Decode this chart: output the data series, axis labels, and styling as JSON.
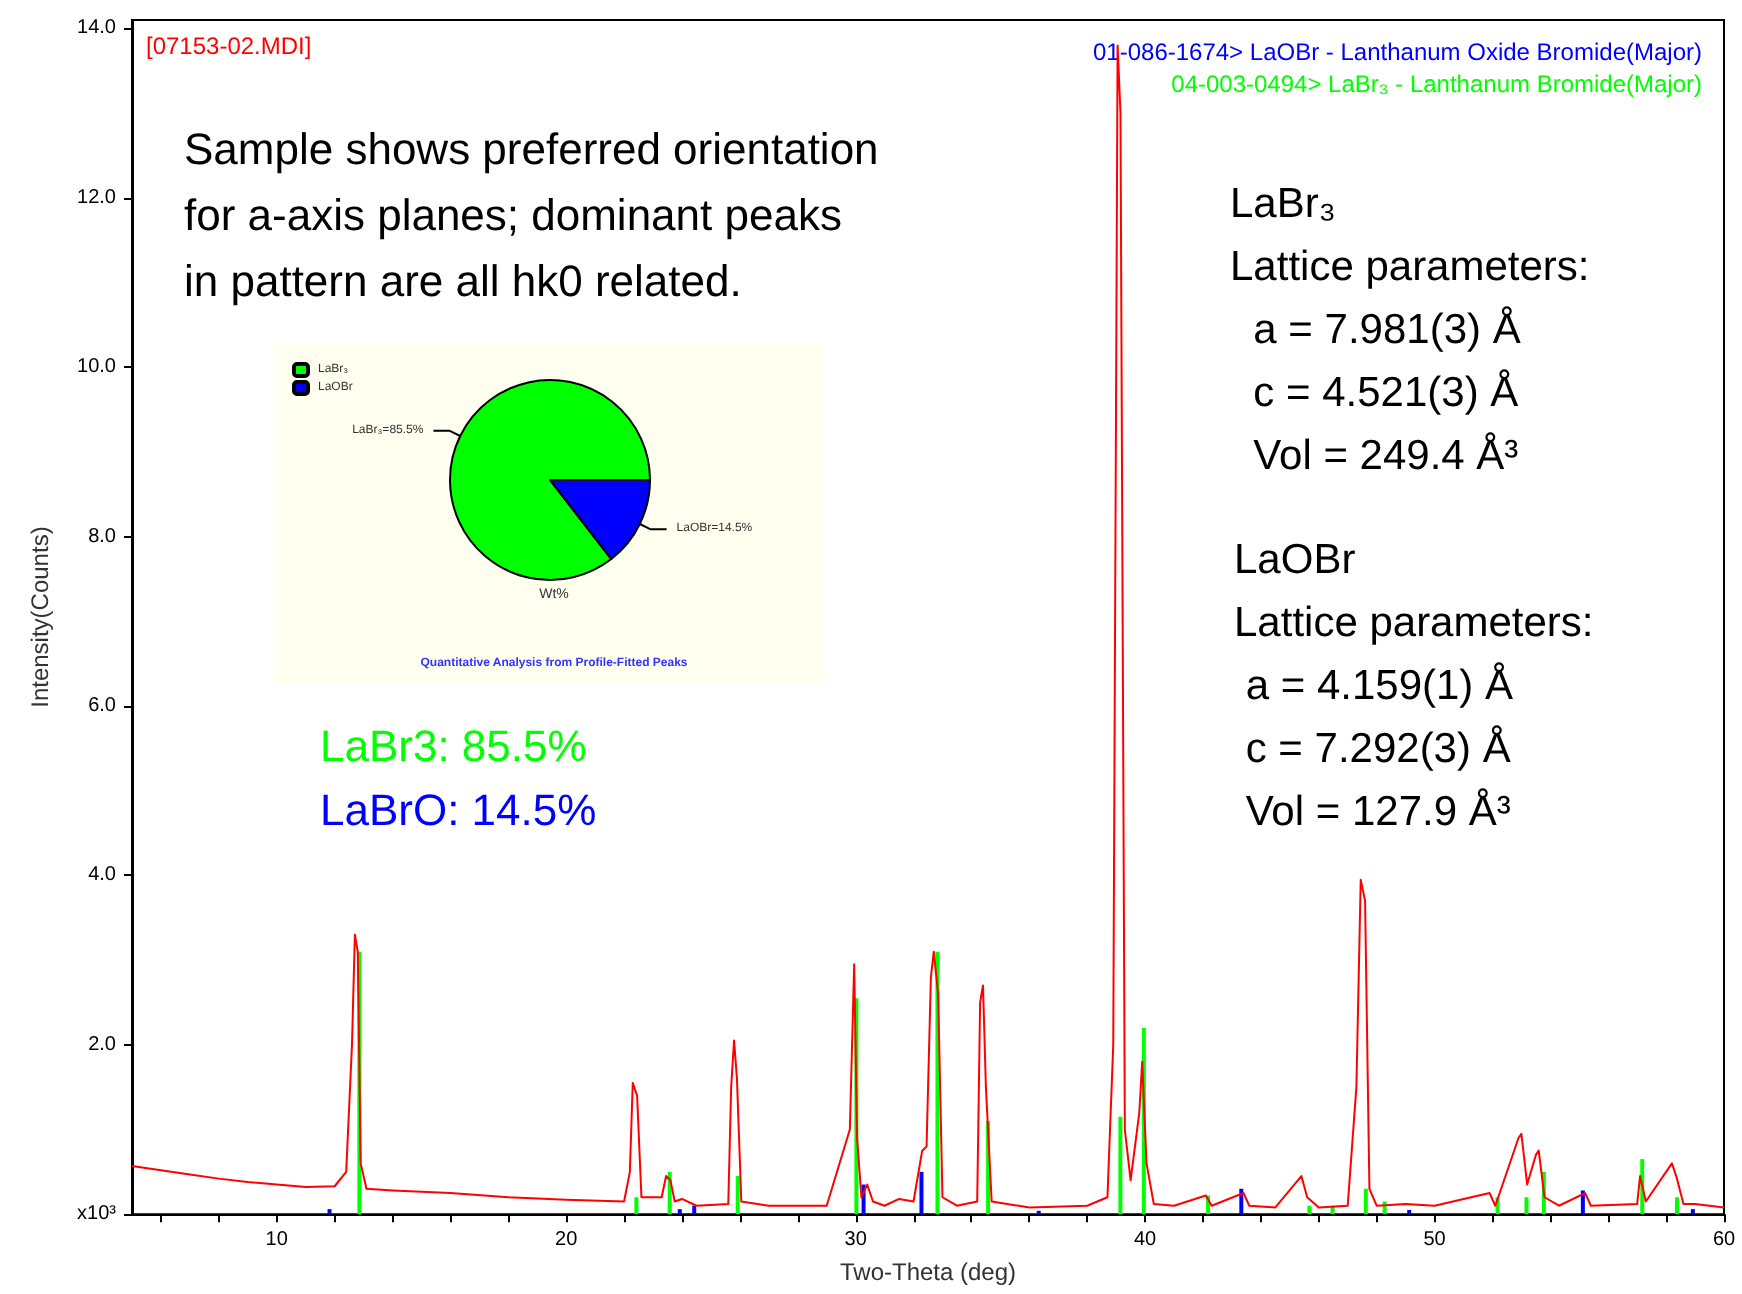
{
  "chart_data": [
    {
      "type": "line",
      "title": "[07153-02.MDI]",
      "xlabel": "Two-Theta (deg)",
      "ylabel": "Intensity(Counts)",
      "annotations": [
        "Sample shows preferred orientation\nfor a-axis planes; dominant peaks\nin pattern are all hk0 related.",
        "LaBr₃\nLattice parameters:\n  a = 7.981(3) Å\n  c = 4.521(3) Å\n  Vol = 249.4 Å³",
        "LaOBr\nLattice parameters:\n a = 4.159(1) Å\n c = 7.292(3) Å\n Vol = 127.9 Å³"
      ],
      "x": [
        5,
        6,
        7,
        8,
        9,
        10,
        11,
        12,
        12.4,
        12.6,
        12.7,
        12.8,
        12.9,
        13.1,
        14,
        16,
        18,
        20,
        22,
        22.2,
        22.3,
        22.45,
        22.6,
        23.3,
        23.45,
        23.6,
        23.75,
        24,
        24.5,
        25.6,
        25.7,
        25.8,
        25.9,
        26.05,
        27,
        29,
        29.8,
        29.95,
        30.05,
        30.2,
        30.4,
        30.6,
        31,
        31.5,
        32,
        32.3,
        32.45,
        32.6,
        32.7,
        32.85,
        33,
        33.5,
        34.2,
        34.3,
        34.4,
        34.5,
        34.7,
        36,
        38,
        38.7,
        38.9,
        39.05,
        39.15,
        39.3,
        39.5,
        39.8,
        39.9,
        40.05,
        40.3,
        41,
        42.1,
        42.3,
        43.4,
        43.6,
        44.5,
        45.4,
        45.6,
        46,
        47,
        47.3,
        47.45,
        47.6,
        47.75,
        48,
        49,
        50,
        51.9,
        52.1,
        52.9,
        53,
        53.2,
        53.5,
        53.6,
        53.8,
        54.3,
        55.2,
        55.4,
        57,
        57.1,
        57.3,
        58.2,
        58.35,
        58.6,
        59,
        60
      ],
      "series": [
        {
          "type": "line",
          "color": "#ff0000",
          "values": [
            0.57,
            0.52,
            0.47,
            0.42,
            0.38,
            0.35,
            0.32,
            0.33,
            0.5,
            2.0,
            3.3,
            3.1,
            0.6,
            0.3,
            0.28,
            0.25,
            0.2,
            0.17,
            0.15,
            0.5,
            1.55,
            1.4,
            0.2,
            0.2,
            0.45,
            0.4,
            0.15,
            0.18,
            0.1,
            0.12,
            1.5,
            2.05,
            1.6,
            0.15,
            0.1,
            0.1,
            1.0,
            2.95,
            0.9,
            0.2,
            0.35,
            0.15,
            0.1,
            0.18,
            0.15,
            0.75,
            0.8,
            2.8,
            3.1,
            2.6,
            0.2,
            0.1,
            0.15,
            2.5,
            2.7,
            1.5,
            0.15,
            0.08,
            0.1,
            0.2,
            2.0,
            13.8,
            13.0,
            1.0,
            0.4,
            1.2,
            1.8,
            0.6,
            0.12,
            0.1,
            0.22,
            0.1,
            0.25,
            0.1,
            0.08,
            0.45,
            0.2,
            0.08,
            0.1,
            1.5,
            3.95,
            3.7,
            0.3,
            0.1,
            0.12,
            0.1,
            0.25,
            0.1,
            0.9,
            0.95,
            0.35,
            0.7,
            0.75,
            0.2,
            0.1,
            0.25,
            0.1,
            0.12,
            0.45,
            0.15,
            0.6,
            0.45,
            0.12,
            0.12,
            0.08
          ]
        },
        {
          "type": "bar",
          "name": "01-086-1674> LaOBr - Lanthanum Oxide Bromide(Major)",
          "color": "#0000ff",
          "x": [
            11.9,
            24.0,
            24.5,
            30.35,
            32.35,
            36.4,
            43.4,
            49.2,
            55.2,
            59.0
          ],
          "values": [
            0.06,
            0.06,
            0.1,
            0.35,
            0.5,
            0.04,
            0.3,
            0.05,
            0.28,
            0.06
          ]
        },
        {
          "type": "bar",
          "name": "04-003-0494> LaBr₃ - Lanthanum Bromide(Major)",
          "color": "#00ff00",
          "x": [
            12.78,
            22.35,
            23.5,
            25.85,
            29.95,
            32.75,
            34.5,
            39.07,
            39.88,
            42.1,
            45.6,
            46.4,
            47.55,
            48.2,
            52.1,
            53.1,
            53.7,
            57.1,
            58.3
          ],
          "values": [
            3.1,
            0.2,
            0.5,
            0.45,
            2.55,
            3.1,
            1.1,
            1.15,
            2.2,
            0.22,
            0.1,
            0.1,
            0.3,
            0.15,
            0.2,
            0.2,
            0.5,
            0.65,
            0.2
          ]
        }
      ],
      "xlim": [
        5,
        60
      ],
      "xticks": [
        {
          "value": 6,
          "label": null
        },
        {
          "value": 8,
          "label": null
        },
        10,
        {
          "value": 12,
          "label": null
        },
        {
          "value": 14,
          "label": null
        },
        {
          "value": 16,
          "label": null
        },
        {
          "value": 18,
          "label": null
        },
        20,
        {
          "value": 22,
          "label": null
        },
        {
          "value": 24,
          "label": null
        },
        {
          "value": 26,
          "label": null
        },
        {
          "value": 28,
          "label": null
        },
        30,
        {
          "value": 32,
          "label": null
        },
        {
          "value": 34,
          "label": null
        },
        {
          "value": 36,
          "label": null
        },
        {
          "value": 38,
          "label": null
        },
        40,
        {
          "value": 42,
          "label": null
        },
        {
          "value": 44,
          "label": null
        },
        {
          "value": 46,
          "label": null
        },
        {
          "value": 48,
          "label": null
        },
        50,
        {
          "value": 52,
          "label": null
        },
        {
          "value": 54,
          "label": null
        },
        {
          "value": 56,
          "label": null
        },
        {
          "value": 58,
          "label": null
        },
        60
      ],
      "ylim": [
        0,
        14.1
      ],
      "yticks": [
        {
          "value": 0,
          "label": "x10³"
        },
        {
          "value": 2,
          "label": "2.0"
        },
        {
          "value": 4,
          "label": "4.0"
        },
        {
          "value": 6,
          "label": "6.0"
        },
        {
          "value": 8,
          "label": "8.0"
        },
        {
          "value": 10,
          "label": "10.0"
        },
        {
          "value": 12,
          "label": "12.0"
        },
        {
          "value": 14,
          "label": "14.0"
        }
      ],
      "legend": "top right",
      "grid": false,
      "marker": "none"
    },
    {
      "type": "pie",
      "title": "Quantitative Analysis from Profile-Fitted Peaks",
      "xlabel": "Wt%",
      "categories": [
        "LaBr₃",
        "LaOBr"
      ],
      "values": [
        85.5,
        14.5
      ],
      "colors": [
        "#00ff00",
        "#0000ff"
      ],
      "value_labels": [
        "LaBr₃=85.5%",
        "LaOBr=14.5%"
      ],
      "legend": "top left",
      "annotations": [
        "LaBr3: 85.5%",
        "LaBrO: 14.5%"
      ]
    }
  ]
}
